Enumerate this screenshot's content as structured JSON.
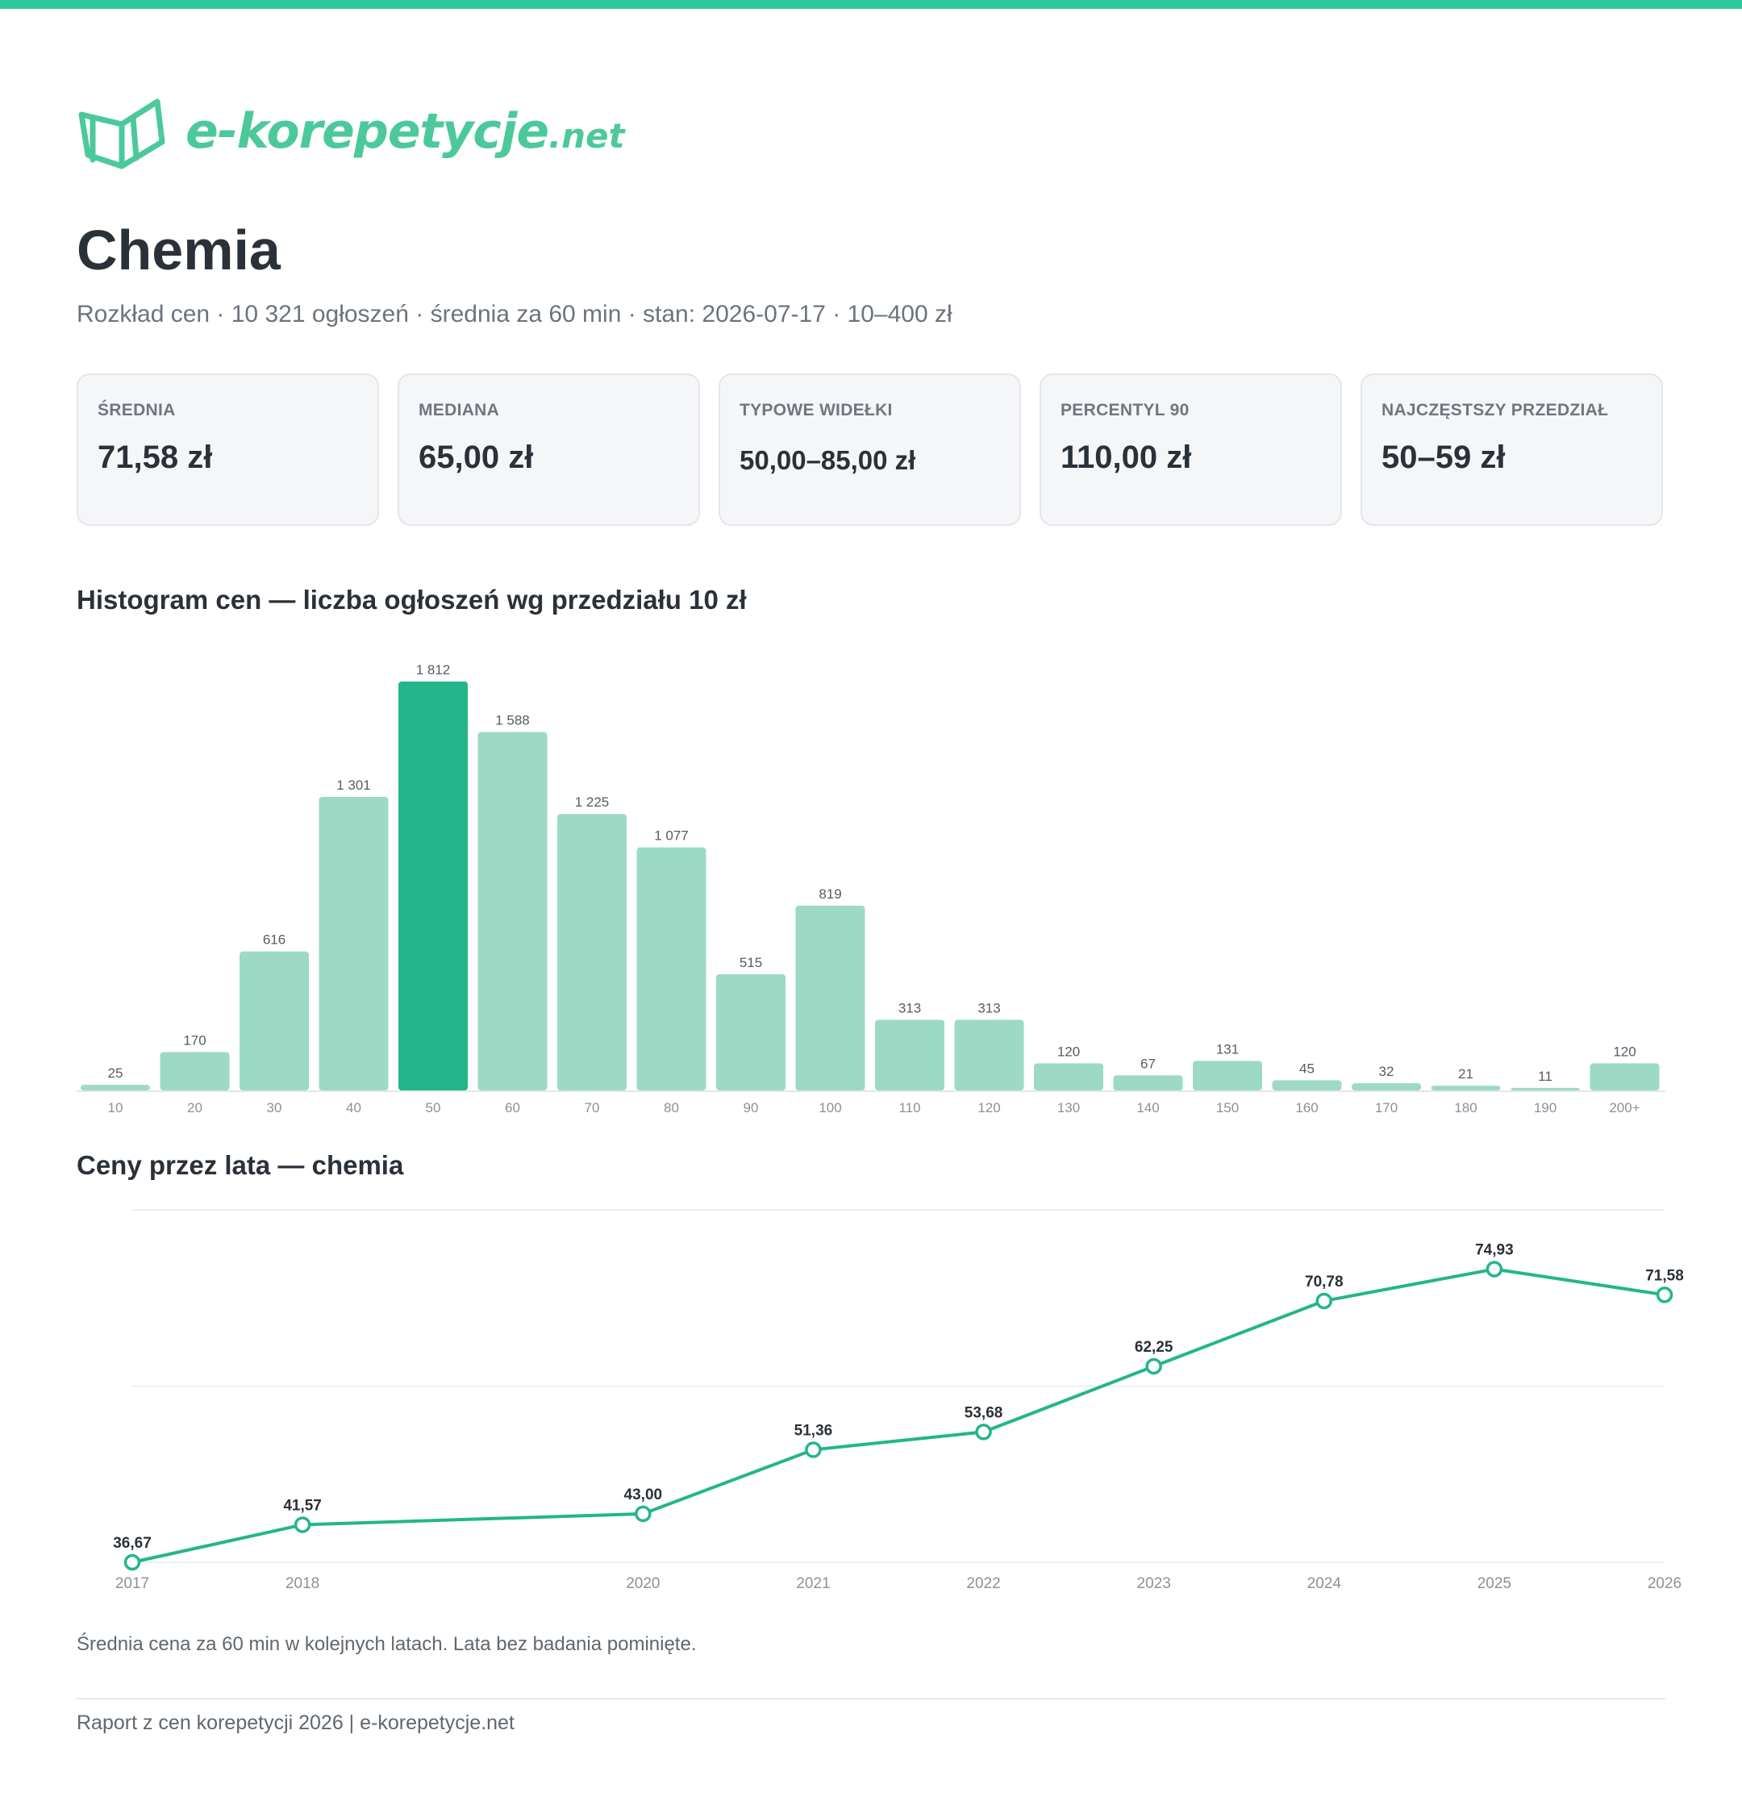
{
  "brand": {
    "name": "e-korepetycje",
    "suffix": ".net",
    "color": "#2ec99b"
  },
  "header": {
    "title": "Chemia",
    "subtitle": "Rozkład cen · 10 321 ogłoszeń · średnia za 60 min · stan: 2026-07-17 · 10–400 zł"
  },
  "stats": [
    {
      "label": "ŚREDNIA",
      "value": "71,58 zł"
    },
    {
      "label": "MEDIANA",
      "value": "65,00 zł"
    },
    {
      "label": "TYPOWE WIDEŁKI",
      "value": "50,00–85,00 zł"
    },
    {
      "label": "PERCENTYL 90",
      "value": "110,00 zł"
    },
    {
      "label": "NAJCZĘSTSZY PRZEDZIAŁ",
      "value": "50–59 zł"
    }
  ],
  "sections": {
    "histogram_title": "Histogram cen — liczba ogłoszeń wg przedziału 10 zł",
    "line_title": "Ceny przez lata — chemia",
    "line_note": "Średnia cena za 60 min w kolejnych latach. Lata bez badania pominięte."
  },
  "footer": {
    "text": "Raport z cen korepetycji 2026 | e-korepetycje.net"
  },
  "chart_data": [
    {
      "type": "bar",
      "title": "Histogram cen — liczba ogłoszeń wg przedziału 10 zł",
      "categories": [
        "10",
        "20",
        "30",
        "40",
        "50",
        "60",
        "70",
        "80",
        "90",
        "100",
        "110",
        "120",
        "130",
        "140",
        "150",
        "160",
        "170",
        "180",
        "190",
        "200+"
      ],
      "values": [
        25,
        170,
        616,
        1301,
        1812,
        1588,
        1225,
        1077,
        515,
        819,
        313,
        313,
        120,
        67,
        131,
        45,
        32,
        21,
        11,
        120
      ],
      "value_labels": [
        "25",
        "170",
        "616",
        "1 301",
        "1 812",
        "1 588",
        "1 225",
        "1 077",
        "515",
        "819",
        "313",
        "313",
        "120",
        "67",
        "131",
        "45",
        "32",
        "21",
        "11",
        "120"
      ],
      "highlight_category": "50",
      "colors": {
        "bar": "#9ddac5",
        "highlight": "#24b58b"
      },
      "ylim": [
        0,
        1812
      ],
      "grid": false,
      "legend": "none"
    },
    {
      "type": "line",
      "title": "Ceny przez lata — chemia",
      "x": [
        2017,
        2018,
        2020,
        2021,
        2022,
        2023,
        2024,
        2025,
        2026
      ],
      "x_labels": [
        "2017",
        "2018",
        "2020",
        "2021",
        "2022",
        "2023",
        "2024",
        "2025",
        "2026"
      ],
      "values": [
        36.67,
        41.57,
        43.0,
        51.36,
        53.68,
        62.25,
        70.78,
        74.93,
        71.58
      ],
      "value_labels": [
        "36,67",
        "41,57",
        "43,00",
        "51,36",
        "53,68",
        "62,25",
        "70,78",
        "74,93",
        "71,58"
      ],
      "ylim": [
        36.67,
        82.67
      ],
      "colors": {
        "line": "#24b58b"
      },
      "grid": true,
      "legend": "none"
    }
  ]
}
